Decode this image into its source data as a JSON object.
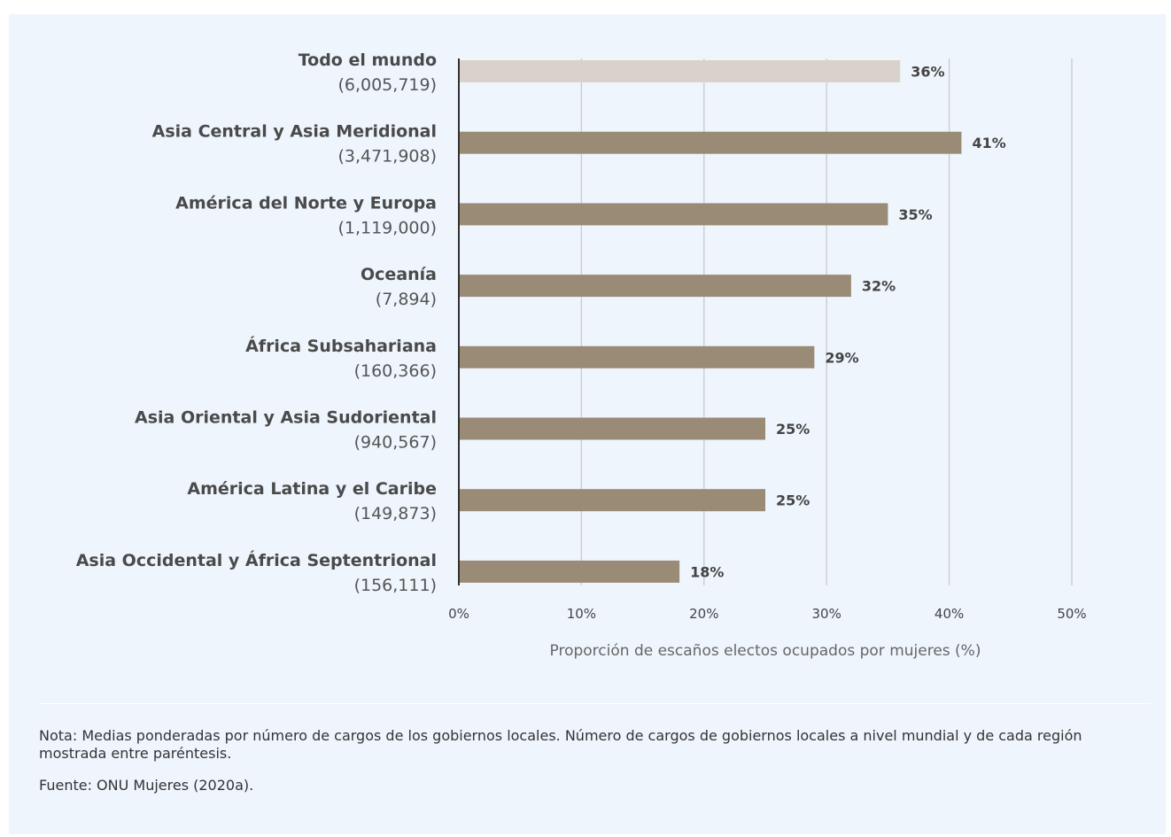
{
  "chart_data": {
    "type": "bar",
    "orientation": "horizontal",
    "categories": [
      "Todo el mundo",
      "Asia Central y Asia Meridional",
      "América del Norte y Europa",
      "Oceanía",
      "África Subsahariana",
      "Asia Oriental y Asia Sudoriental",
      "América Latina y el Caribe",
      "Asia Occidental y África Septentrional"
    ],
    "counts": [
      "(6,005,719)",
      "(3,471,908)",
      "(1,119,000)",
      "(7,894)",
      "(160,366)",
      "(940,567)",
      "(149,873)",
      "(156,111)"
    ],
    "values": [
      36,
      41,
      35,
      32,
      29,
      25,
      25,
      18
    ],
    "value_labels": [
      "36%",
      "41%",
      "35%",
      "32%",
      "29%",
      "25%",
      "25%",
      "18%"
    ],
    "xlabel": "Proporción de escaños electos  ocupados por mujeres (%)",
    "xlim": [
      0,
      50
    ],
    "ticks": [
      0,
      10,
      20,
      30,
      40,
      50
    ],
    "tick_labels": [
      "0%",
      "10%",
      "20%",
      "30%",
      "40%",
      "50%"
    ],
    "grid": true,
    "colors": {
      "highlight": "#d9d2ca",
      "bar": "#9a8b76",
      "grid": "#c9ccd0",
      "axis": "#333333"
    }
  },
  "note": "Nota: Medias ponderadas por número de cargos de los gobiernos locales. Número de cargos de gobiernos locales a nivel mundial y de cada región mostrada entre paréntesis.",
  "source": "Fuente: ONU Mujeres (2020a)."
}
